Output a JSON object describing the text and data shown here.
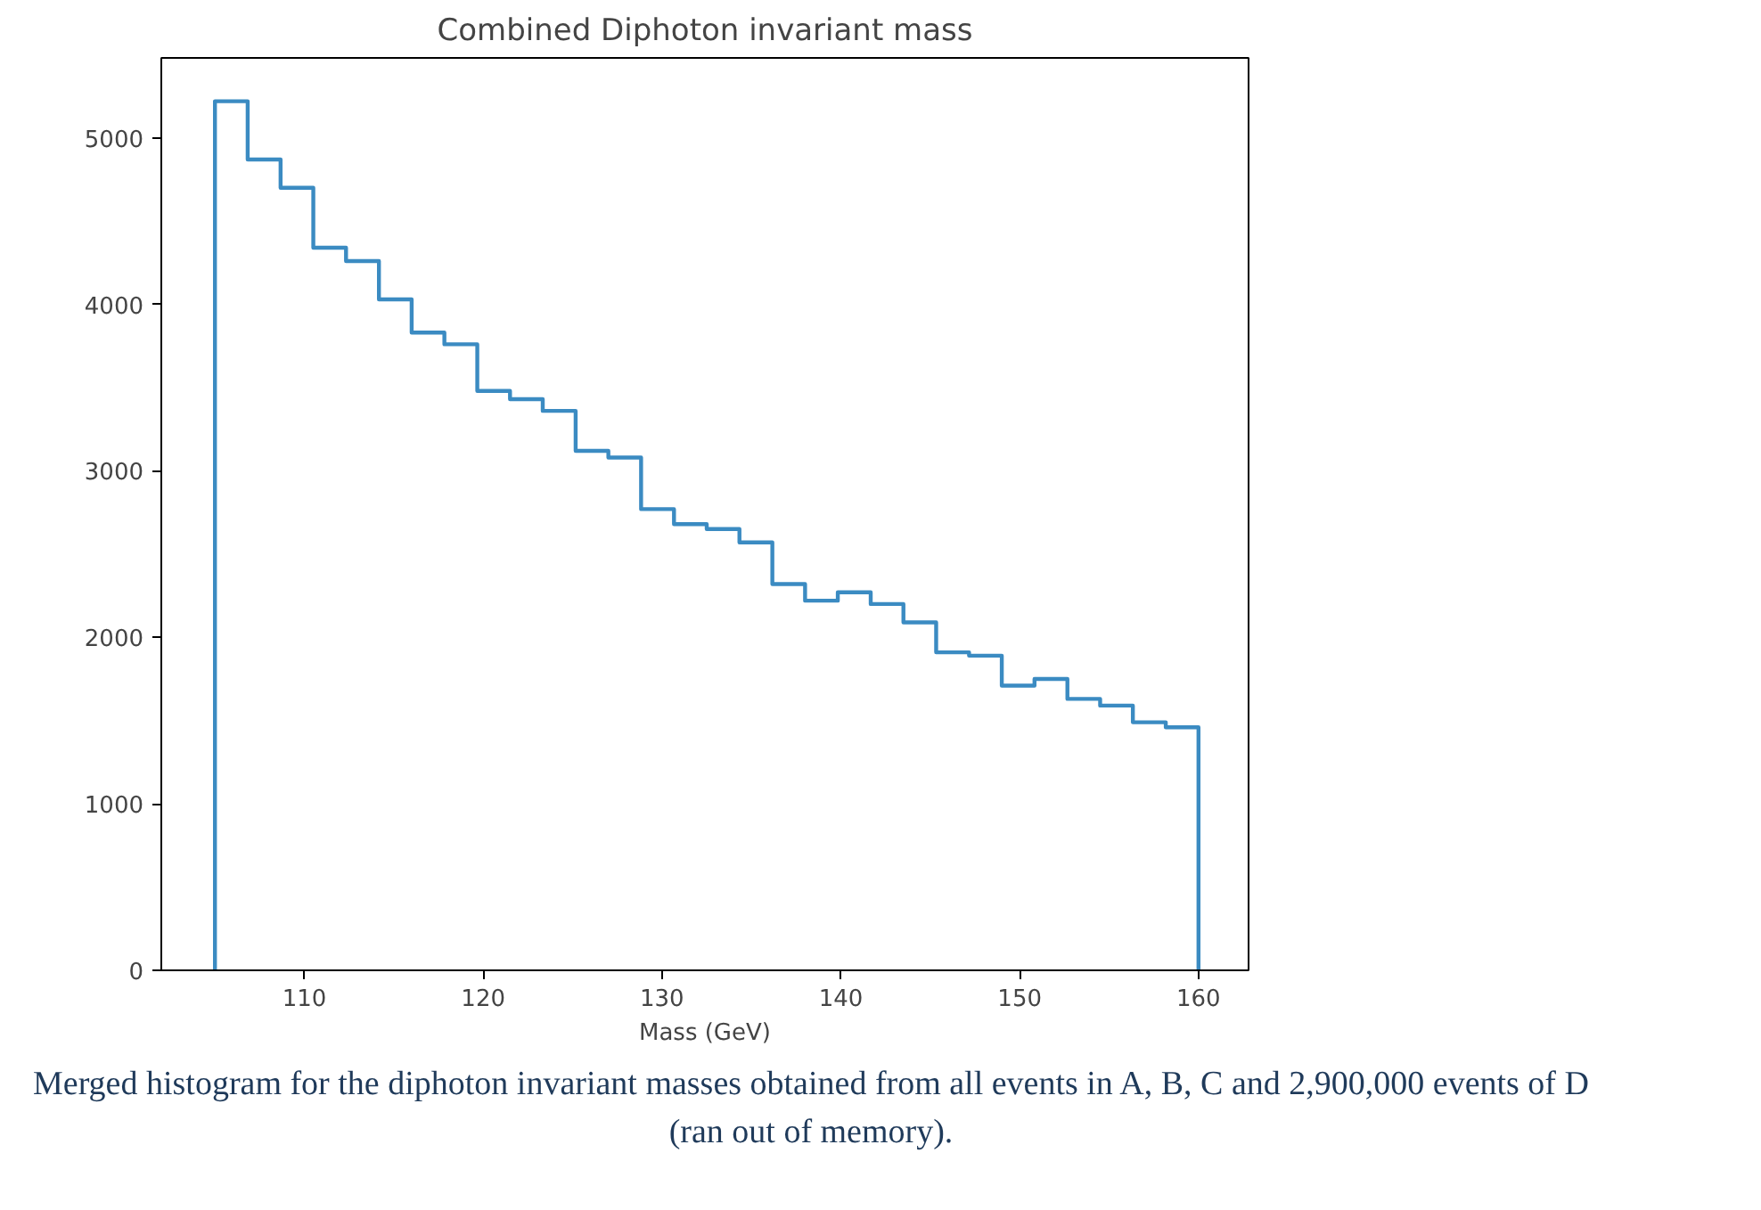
{
  "chart_data": {
    "type": "histogram",
    "title": "Combined Diphoton invariant mass",
    "xlabel": "Mass (GeV)",
    "bins": [
      105,
      106.83,
      108.67,
      110.5,
      112.33,
      114.17,
      116,
      117.83,
      119.67,
      121.5,
      123.33,
      125.17,
      127,
      128.83,
      130.67,
      132.5,
      134.33,
      136.17,
      138,
      139.83,
      141.67,
      143.5,
      145.33,
      147.17,
      149,
      150.83,
      152.67,
      154.5,
      156.33,
      158.17,
      160
    ],
    "values": [
      5220,
      4870,
      4700,
      4340,
      4260,
      4030,
      3830,
      3760,
      3480,
      3430,
      3360,
      3120,
      3080,
      2770,
      2680,
      2650,
      2570,
      2320,
      2220,
      2270,
      2200,
      2090,
      1910,
      1890,
      1710,
      1750,
      1630,
      1590,
      1490,
      1460
    ],
    "color": "#3b8bc2",
    "xlim": [
      102,
      162.8
    ],
    "ylim": [
      0,
      5480
    ],
    "xticks": [
      110,
      120,
      130,
      140,
      150,
      160
    ],
    "yticks": [
      0,
      1000,
      2000,
      3000,
      4000,
      5000
    ],
    "grid": false,
    "annotations": [
      "Merged histogram for the diphoton invariant masses obtained from all events in A, B, C and 2,900,000 events of D (ran out of memory)."
    ]
  }
}
